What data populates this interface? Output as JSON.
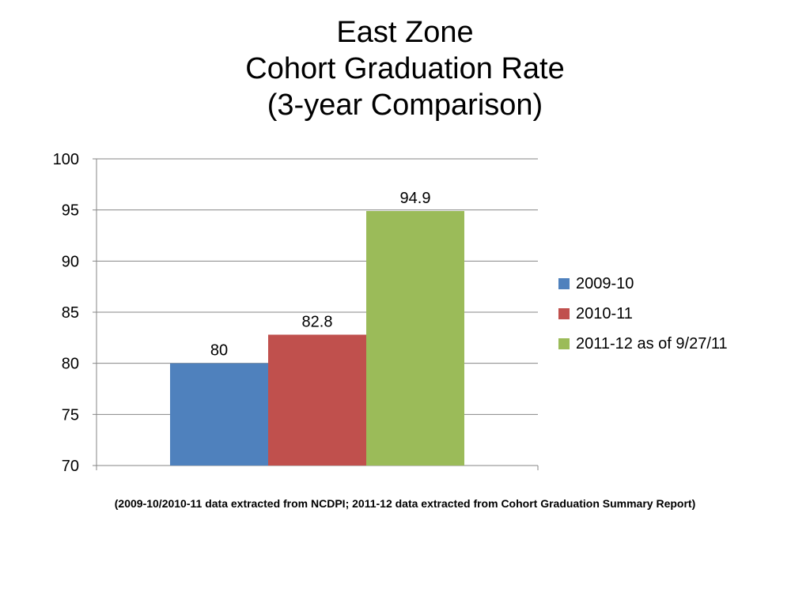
{
  "chart_data": {
    "type": "bar",
    "title_lines": [
      "East Zone",
      "Cohort Graduation Rate",
      "(3-year Comparison)"
    ],
    "categories": [
      "2009-10",
      "2010-11",
      "2011-12 as of 9/27/11"
    ],
    "values": [
      80,
      82.8,
      94.9
    ],
    "value_labels": [
      "80",
      "82.8",
      "94.9"
    ],
    "colors": [
      "#4F81BD",
      "#C0504D",
      "#9BBB59"
    ],
    "ylim": [
      70,
      100
    ],
    "yticks": [
      70,
      75,
      80,
      85,
      90,
      95,
      100
    ],
    "grid": true,
    "legend": "right",
    "xlabel": "",
    "ylabel": ""
  },
  "footnote": "(2009-10/2010-11 data extracted from NCDPI; 2011-12 data extracted from Cohort Graduation Summary Report)"
}
